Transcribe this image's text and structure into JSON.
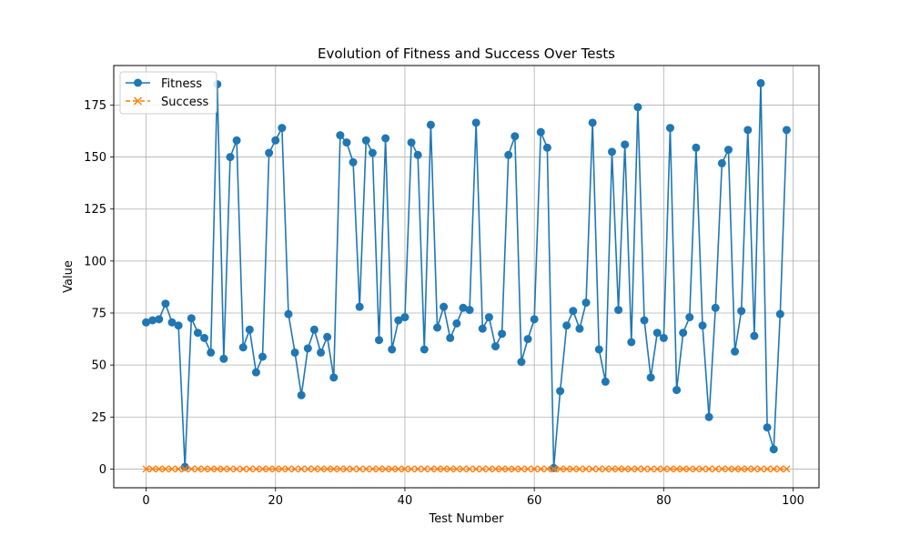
{
  "chart_data": {
    "type": "line",
    "title": "Evolution of Fitness and Success Over Tests",
    "xlabel": "Test Number",
    "ylabel": "Value",
    "xlim": [
      -5,
      104
    ],
    "ylim": [
      -9,
      194
    ],
    "xticks": [
      0,
      20,
      40,
      60,
      80,
      100
    ],
    "yticks": [
      0,
      25,
      50,
      75,
      100,
      125,
      150,
      175
    ],
    "grid": true,
    "legend_position": "top-left",
    "x": [
      0,
      1,
      2,
      3,
      4,
      5,
      6,
      7,
      8,
      9,
      10,
      11,
      12,
      13,
      14,
      15,
      16,
      17,
      18,
      19,
      20,
      21,
      22,
      23,
      24,
      25,
      26,
      27,
      28,
      29,
      30,
      31,
      32,
      33,
      34,
      35,
      36,
      37,
      38,
      39,
      40,
      41,
      42,
      43,
      44,
      45,
      46,
      47,
      48,
      49,
      50,
      51,
      52,
      53,
      54,
      55,
      56,
      57,
      58,
      59,
      60,
      61,
      62,
      63,
      64,
      65,
      66,
      67,
      68,
      69,
      70,
      71,
      72,
      73,
      74,
      75,
      76,
      77,
      78,
      79,
      80,
      81,
      82,
      83,
      84,
      85,
      86,
      87,
      88,
      89,
      90,
      91,
      92,
      93,
      94,
      95,
      96,
      97,
      98,
      99
    ],
    "series": [
      {
        "name": "Fitness",
        "color": "#1f77b4",
        "marker": "circle",
        "linestyle": "solid",
        "values": [
          70.5,
          71.5,
          72,
          79.5,
          70.5,
          69,
          1,
          72.5,
          65.5,
          63,
          56,
          185,
          53,
          150,
          158,
          58.5,
          67,
          46.5,
          54,
          152,
          158,
          164,
          74.5,
          56,
          35.5,
          58,
          67,
          56,
          63.5,
          44,
          160.5,
          157,
          147.5,
          78,
          158,
          152,
          62,
          159,
          57.5,
          71.5,
          73,
          157,
          151,
          57.5,
          165.5,
          68,
          78,
          63,
          70,
          77.5,
          76.5,
          166.5,
          67.5,
          73,
          59,
          65,
          151,
          160,
          51.5,
          62.5,
          72,
          162,
          154.5,
          0.5,
          37.5,
          69,
          76,
          67.5,
          80,
          166.5,
          57.5,
          42,
          152.5,
          76.5,
          156,
          61,
          174,
          71.5,
          44,
          65.5,
          63,
          164,
          38,
          65.5,
          73,
          154.5,
          69,
          25,
          77.5,
          147,
          153.5,
          56.5,
          76,
          163,
          64,
          185.5,
          20,
          9.5,
          74.5,
          163
        ]
      },
      {
        "name": "Success",
        "color": "#ff7f0e",
        "marker": "x",
        "linestyle": "dashed",
        "values": [
          0,
          0,
          0,
          0,
          0,
          0,
          0,
          0,
          0,
          0,
          0,
          0,
          0,
          0,
          0,
          0,
          0,
          0,
          0,
          0,
          0,
          0,
          0,
          0,
          0,
          0,
          0,
          0,
          0,
          0,
          0,
          0,
          0,
          0,
          0,
          0,
          0,
          0,
          0,
          0,
          0,
          0,
          0,
          0,
          0,
          0,
          0,
          0,
          0,
          0,
          0,
          0,
          0,
          0,
          0,
          0,
          0,
          0,
          0,
          0,
          0,
          0,
          0,
          0,
          0,
          0,
          0,
          0,
          0,
          0,
          0,
          0,
          0,
          0,
          0,
          0,
          0,
          0,
          0,
          0,
          0,
          0,
          0,
          0,
          0,
          0,
          0,
          0,
          0,
          0,
          0,
          0,
          0,
          0,
          0,
          0,
          0,
          0,
          0,
          0
        ]
      }
    ]
  }
}
